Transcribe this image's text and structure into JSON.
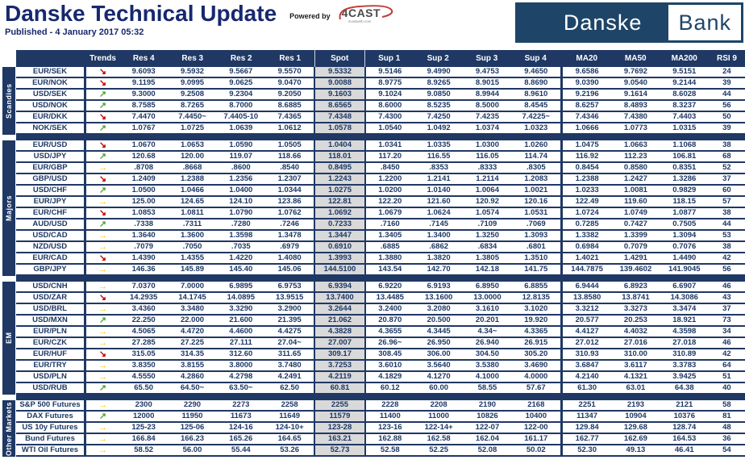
{
  "header": {
    "title": "Danske Technical Update",
    "powered_by": "Powered by",
    "fourcast": {
      "text": "4CAST",
      "sub": "4castweb.com"
    },
    "published": "Published - 4 January 2017 05:32",
    "brand": {
      "part1": "Danske",
      "part2": "Bank"
    }
  },
  "colors": {
    "navy": "#1f3864",
    "title_navy": "#17286e",
    "brand_navy": "#1e4568",
    "spot_bg": "#d9d9d9",
    "trend_up": "#55a33c",
    "trend_down": "#c00000",
    "trend_flat": "#ffc000"
  },
  "trends": {
    "up": {
      "glyph": "↗",
      "color": "#55a33c"
    },
    "down": {
      "glyph": "↘",
      "color": "#c00000"
    },
    "flat": {
      "glyph": "→",
      "color": "#ffc000"
    }
  },
  "table": {
    "columns": [
      "Trends",
      "Res 4",
      "Res 3",
      "Res 2",
      "Res 1",
      "Spot",
      "Sup 1",
      "Sup 2",
      "Sup 3",
      "Sup 4",
      "MA20",
      "MA50",
      "MA200",
      "RSI 9"
    ],
    "sections": [
      {
        "label": "Scandies",
        "rows": [
          {
            "name": "EUR/SEK",
            "trend": "down",
            "values": [
              "9.6093",
              "9.5932",
              "9.5667",
              "9.5570",
              "9.5332",
              "9.5146",
              "9.4990",
              "9.4753",
              "9.4650",
              "9.6586",
              "9.7692",
              "9.5151",
              "24"
            ]
          },
          {
            "name": "EUR/NOK",
            "trend": "down",
            "values": [
              "9.1195",
              "9.0995",
              "9.0625",
              "9.0470",
              "9.0088",
              "8.9775",
              "8.9265",
              "8.9015",
              "8.8690",
              "9.0390",
              "9.0540",
              "9.2144",
              "39"
            ]
          },
          {
            "name": "USD/SEK",
            "trend": "up",
            "values": [
              "9.3000",
              "9.2508",
              "9.2304",
              "9.2050",
              "9.1603",
              "9.1024",
              "9.0850",
              "8.9944",
              "8.9610",
              "9.2196",
              "9.1614",
              "8.6028",
              "44"
            ]
          },
          {
            "name": "USD/NOK",
            "trend": "up",
            "values": [
              "8.7585",
              "8.7265",
              "8.7000",
              "8.6885",
              "8.6565",
              "8.6000",
              "8.5235",
              "8.5000",
              "8.4545",
              "8.6257",
              "8.4893",
              "8.3237",
              "56"
            ]
          },
          {
            "name": "EUR/DKK",
            "trend": "down",
            "values": [
              "7.4470",
              "7.4450~",
              "7.4405-10",
              "7.4365",
              "7.4348",
              "7.4300",
              "7.4250",
              "7.4235",
              "7.4225~",
              "7.4346",
              "7.4380",
              "7.4403",
              "50"
            ]
          },
          {
            "name": "NOK/SEK",
            "trend": "up",
            "values": [
              "1.0767",
              "1.0725",
              "1.0639",
              "1.0612",
              "1.0578",
              "1.0540",
              "1.0492",
              "1.0374",
              "1.0323",
              "1.0666",
              "1.0773",
              "1.0315",
              "39"
            ]
          }
        ]
      },
      {
        "label": "Majors",
        "rows": [
          {
            "name": "EUR/USD",
            "trend": "down",
            "values": [
              "1.0670",
              "1.0653",
              "1.0590",
              "1.0505",
              "1.0404",
              "1.0341",
              "1.0335",
              "1.0300",
              "1.0260",
              "1.0475",
              "1.0663",
              "1.1068",
              "38"
            ]
          },
          {
            "name": "USD/JPY",
            "trend": "up",
            "values": [
              "120.68",
              "120.00",
              "119.07",
              "118.66",
              "118.01",
              "117.20",
              "116.55",
              "116.05",
              "114.74",
              "116.92",
              "112.23",
              "106.81",
              "68"
            ]
          },
          {
            "name": "EUR/GBP",
            "trend": "flat",
            "values": [
              ".8708",
              ".8668",
              ".8600",
              ".8540",
              "0.8495",
              ".8450",
              ".8353",
              ".8333",
              ".8305",
              "0.8454",
              "0.8580",
              "0.8351",
              "52"
            ]
          },
          {
            "name": "GBP/USD",
            "trend": "down",
            "values": [
              "1.2409",
              "1.2388",
              "1.2356",
              "1.2307",
              "1.2243",
              "1.2200",
              "1.2141",
              "1.2114",
              "1.2083",
              "1.2388",
              "1.2427",
              "1.3286",
              "37"
            ]
          },
          {
            "name": "USD/CHF",
            "trend": "up",
            "values": [
              "1.0500",
              "1.0466",
              "1.0400",
              "1.0344",
              "1.0275",
              "1.0200",
              "1.0140",
              "1.0064",
              "1.0021",
              "1.0233",
              "1.0081",
              "0.9829",
              "60"
            ]
          },
          {
            "name": "EUR/JPY",
            "trend": "flat",
            "values": [
              "125.00",
              "124.65",
              "124.10",
              "123.86",
              "122.81",
              "122.20",
              "121.60",
              "120.92",
              "120.16",
              "122.49",
              "119.60",
              "118.15",
              "57"
            ]
          },
          {
            "name": "EUR/CHF",
            "trend": "down",
            "values": [
              "1.0853",
              "1.0811",
              "1.0790",
              "1.0762",
              "1.0692",
              "1.0679",
              "1.0624",
              "1.0574",
              "1.0531",
              "1.0724",
              "1.0749",
              "1.0877",
              "38"
            ]
          },
          {
            "name": "AUD/USD",
            "trend": "up",
            "values": [
              ".7338",
              ".7311",
              ".7280",
              ".7246",
              "0.7233",
              ".7160",
              ".7145",
              ".7109",
              ".7069",
              "0.7285",
              "0.7427",
              "0.7505",
              "44"
            ]
          },
          {
            "name": "USD/CAD",
            "trend": "flat",
            "values": [
              "1.3640",
              "1.3600",
              "1.3598",
              "1.3478",
              "1.3447",
              "1.3405",
              "1.3400",
              "1.3250",
              "1.3093",
              "1.3382",
              "1.3399",
              "1.3094",
              "53"
            ]
          },
          {
            "name": "NZD/USD",
            "trend": "flat",
            "values": [
              ".7079",
              ".7050",
              ".7035",
              ".6979",
              "0.6910",
              ".6885",
              ".6862",
              ".6834",
              ".6801",
              "0.6984",
              "0.7079",
              "0.7076",
              "38"
            ]
          },
          {
            "name": "EUR/CAD",
            "trend": "down",
            "values": [
              "1.4390",
              "1.4355",
              "1.4220",
              "1.4080",
              "1.3993",
              "1.3880",
              "1.3820",
              "1.3805",
              "1.3510",
              "1.4021",
              "1.4291",
              "1.4490",
              "42"
            ]
          },
          {
            "name": "GBP/JPY",
            "trend": "flat",
            "values": [
              "146.36",
              "145.89",
              "145.40",
              "145.06",
              "144.5100",
              "143.54",
              "142.70",
              "142.18",
              "141.75",
              "144.7875",
              "139.4602",
              "141.9045",
              "56"
            ]
          }
        ]
      },
      {
        "label": "EM",
        "rows": [
          {
            "name": "USD/CNH",
            "trend": "flat",
            "values": [
              "7.0370",
              "7.0000",
              "6.9895",
              "6.9753",
              "6.9394",
              "6.9220",
              "6.9193",
              "6.8950",
              "6.8855",
              "6.9444",
              "6.8923",
              "6.6907",
              "46"
            ]
          },
          {
            "name": "USD/ZAR",
            "trend": "down",
            "values": [
              "14.2935",
              "14.1745",
              "14.0895",
              "13.9515",
              "13.7400",
              "13.4485",
              "13.1600",
              "13.0000",
              "12.8135",
              "13.8580",
              "13.8741",
              "14.3086",
              "43"
            ]
          },
          {
            "name": "USD/BRL",
            "trend": "flat",
            "values": [
              "3.4360",
              "3.3480",
              "3.3290",
              "3.2900",
              "3.2644",
              "3.2400",
              "3.2080",
              "3.1610",
              "3.1020",
              "3.3212",
              "3.3273",
              "3.3474",
              "37"
            ]
          },
          {
            "name": "USD/MXN",
            "trend": "up",
            "values": [
              "22.250",
              "22.000",
              "21.600",
              "21.395",
              "21.062",
              "20.870",
              "20.500",
              "20.201",
              "19.920",
              "20.577",
              "20.253",
              "18.921",
              "73"
            ]
          },
          {
            "name": "EUR/PLN",
            "trend": "flat",
            "values": [
              "4.5065",
              "4.4720",
              "4.4600",
              "4.4275",
              "4.3828",
              "4.3655",
              "4.3445",
              "4.34~",
              "4.3365",
              "4.4127",
              "4.4032",
              "4.3598",
              "34"
            ]
          },
          {
            "name": "EUR/CZK",
            "trend": "flat",
            "values": [
              "27.285",
              "27.225",
              "27.111",
              "27.04~",
              "27.007",
              "26.96~",
              "26.950",
              "26.940",
              "26.915",
              "27.012",
              "27.016",
              "27.018",
              "46"
            ]
          },
          {
            "name": "EUR/HUF",
            "trend": "down",
            "values": [
              "315.05",
              "314.35",
              "312.60",
              "311.65",
              "309.17",
              "308.45",
              "306.00",
              "304.50",
              "305.20",
              "310.93",
              "310.00",
              "310.89",
              "42"
            ]
          },
          {
            "name": "EUR/TRY",
            "trend": "flat",
            "values": [
              "3.8350",
              "3.8155",
              "3.8000",
              "3.7480",
              "3.7253",
              "3.6010",
              "3.5640",
              "3.5380",
              "3.4690",
              "3.6847",
              "3.6117",
              "3.3783",
              "64"
            ]
          },
          {
            "name": "USD/PLN",
            "trend": "flat",
            "values": [
              "4.5550",
              "4.2860",
              "4.2798",
              "4.2491",
              "4.2119",
              "4.1829",
              "4.1270",
              "4.1000",
              "4.0000",
              "4.2140",
              "4.1321",
              "3.9425",
              "51"
            ]
          },
          {
            "name": "USD/RUB",
            "trend": "up",
            "values": [
              "65.50",
              "64.50~",
              "63.50~",
              "62.50",
              "60.81",
              "60.12",
              "60.00",
              "58.55",
              "57.67",
              "61.30",
              "63.01",
              "64.38",
              "40"
            ]
          }
        ]
      },
      {
        "label": "Other Markets",
        "rows": [
          {
            "name": "S&P 500 Futures",
            "trend": "flat",
            "values": [
              "2300",
              "2290",
              "2273",
              "2258",
              "2255",
              "2228",
              "2208",
              "2190",
              "2168",
              "2251",
              "2193",
              "2121",
              "58"
            ]
          },
          {
            "name": "DAX Futures",
            "trend": "up",
            "values": [
              "12000",
              "11950",
              "11673",
              "11649",
              "11579",
              "11400",
              "11000",
              "10826",
              "10400",
              "11347",
              "10904",
              "10376",
              "81"
            ]
          },
          {
            "name": "US 10y Futures",
            "trend": "flat",
            "values": [
              "125-23",
              "125-06",
              "124-16",
              "124-10+",
              "123-28",
              "123-16",
              "122-14+",
              "122-07",
              "122-00",
              "129.84",
              "129.68",
              "128.74",
              "48"
            ]
          },
          {
            "name": "Bund Futures",
            "trend": "flat",
            "values": [
              "166.84",
              "166.23",
              "165.26",
              "164.65",
              "163.21",
              "162.88",
              "162.58",
              "162.04",
              "161.17",
              "162.77",
              "162.69",
              "164.53",
              "36"
            ]
          },
          {
            "name": "WTI Oil Futures",
            "trend": "flat",
            "values": [
              "58.52",
              "56.00",
              "55.44",
              "53.26",
              "52.73",
              "52.58",
              "52.25",
              "52.08",
              "50.02",
              "52.30",
              "49.13",
              "46.41",
              "54"
            ]
          }
        ]
      }
    ]
  }
}
